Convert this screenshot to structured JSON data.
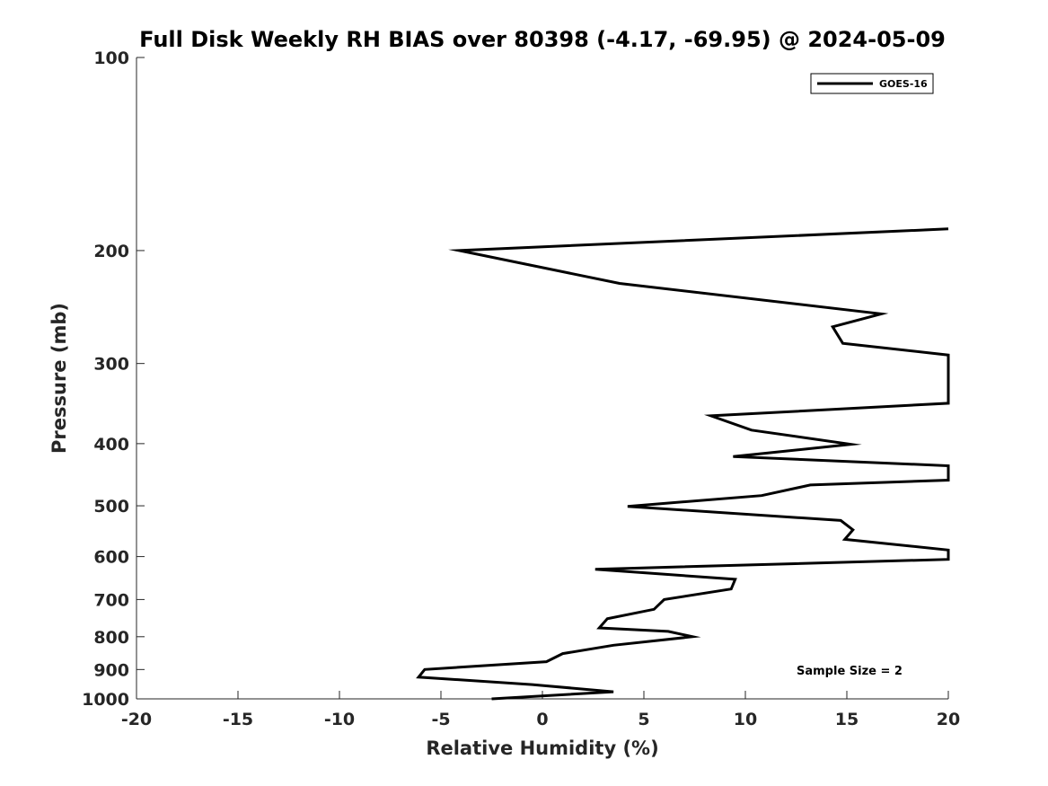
{
  "chart_data": {
    "type": "line",
    "title": "Full Disk Weekly RH BIAS over 80398 (-4.17, -69.95) @ 2024-05-09",
    "xlabel": "Relative Humidity (%)",
    "ylabel": "Pressure (mb)",
    "xlim": [
      -20,
      20
    ],
    "ylim": [
      100,
      1000
    ],
    "y_scale": "log",
    "y_reversed": true,
    "x_ticks": [
      -20,
      -15,
      -10,
      -5,
      0,
      5,
      10,
      15,
      20
    ],
    "y_ticks": [
      100,
      200,
      300,
      400,
      500,
      600,
      700,
      800,
      900,
      1000
    ],
    "grid": false,
    "legend_position": "top-right",
    "annotation": "Sample Size = 2",
    "series": [
      {
        "name": "GOES-16",
        "color": "#000000",
        "points": [
          {
            "x": 20,
            "y": 185
          },
          {
            "x": -4.1,
            "y": 200
          },
          {
            "x": 3.8,
            "y": 225
          },
          {
            "x": 16.7,
            "y": 251
          },
          {
            "x": 14.3,
            "y": 263
          },
          {
            "x": 14.8,
            "y": 279
          },
          {
            "x": 20,
            "y": 291
          },
          {
            "x": 20,
            "y": 346
          },
          {
            "x": 8.3,
            "y": 362
          },
          {
            "x": 10.3,
            "y": 381
          },
          {
            "x": 15.2,
            "y": 401
          },
          {
            "x": 9.4,
            "y": 419
          },
          {
            "x": 20,
            "y": 433
          },
          {
            "x": 20,
            "y": 456
          },
          {
            "x": 13.2,
            "y": 464
          },
          {
            "x": 10.8,
            "y": 482
          },
          {
            "x": 4.2,
            "y": 501
          },
          {
            "x": 14.7,
            "y": 527
          },
          {
            "x": 15.3,
            "y": 545
          },
          {
            "x": 14.9,
            "y": 564
          },
          {
            "x": 20,
            "y": 586
          },
          {
            "x": 20,
            "y": 606
          },
          {
            "x": 2.6,
            "y": 628
          },
          {
            "x": 9.5,
            "y": 651
          },
          {
            "x": 9.3,
            "y": 674
          },
          {
            "x": 6.0,
            "y": 700
          },
          {
            "x": 5.5,
            "y": 725
          },
          {
            "x": 3.2,
            "y": 750
          },
          {
            "x": 2.8,
            "y": 775
          },
          {
            "x": 6.2,
            "y": 785
          },
          {
            "x": 7.4,
            "y": 800
          },
          {
            "x": 3.5,
            "y": 825
          },
          {
            "x": 1.0,
            "y": 850
          },
          {
            "x": 0.2,
            "y": 875
          },
          {
            "x": -5.8,
            "y": 900
          },
          {
            "x": -6.1,
            "y": 925
          },
          {
            "x": -0.5,
            "y": 950
          },
          {
            "x": 3.5,
            "y": 975
          },
          {
            "x": -2.5,
            "y": 1000
          }
        ]
      }
    ]
  }
}
